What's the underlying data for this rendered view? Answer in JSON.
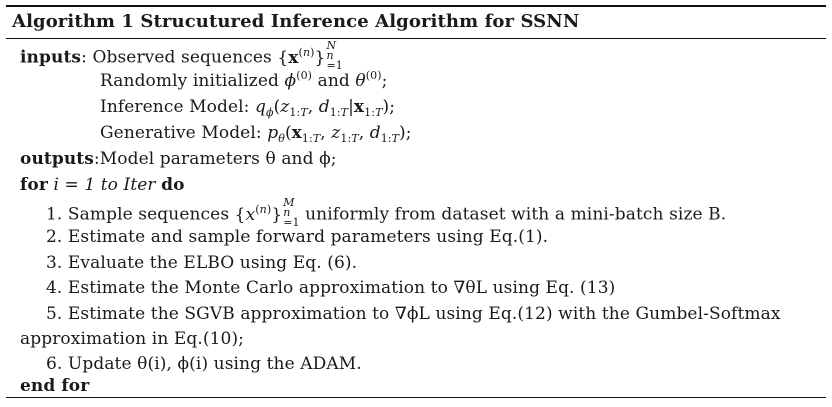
{
  "algorithm": {
    "title": "Algorithm 1 Strucutured Inference Algorithm for SSNN",
    "inputs": {
      "keyword": "inputs",
      "lines": [
        "Observed sequences",
        "Randomly initialized",
        "Inference Model:",
        "Generative Model:"
      ]
    },
    "outputs": {
      "keyword": "outputs",
      "text": "Model parameters θ and ϕ;"
    },
    "loop": {
      "for_keyword": "for",
      "condition": "i = 1 to Iter",
      "do_keyword": "do",
      "end_keyword": "end for"
    },
    "steps": [
      "1. Sample sequences",
      "uniformly from dataset with a mini-batch size B.",
      "2. Estimate and sample forward parameters using Eq.(1).",
      "3. Evaluate the ELBO using Eq. (6).",
      "4. Estimate the Monte Carlo approximation to ∇θL using Eq. (13)",
      "5. Estimate the SGVB approximation to ∇ϕL using Eq.(12) with the Gumbel-Softmax",
      "approximation in Eq.(10);",
      "6. Update θ(i), ϕ(i) using the ADAM."
    ]
  }
}
